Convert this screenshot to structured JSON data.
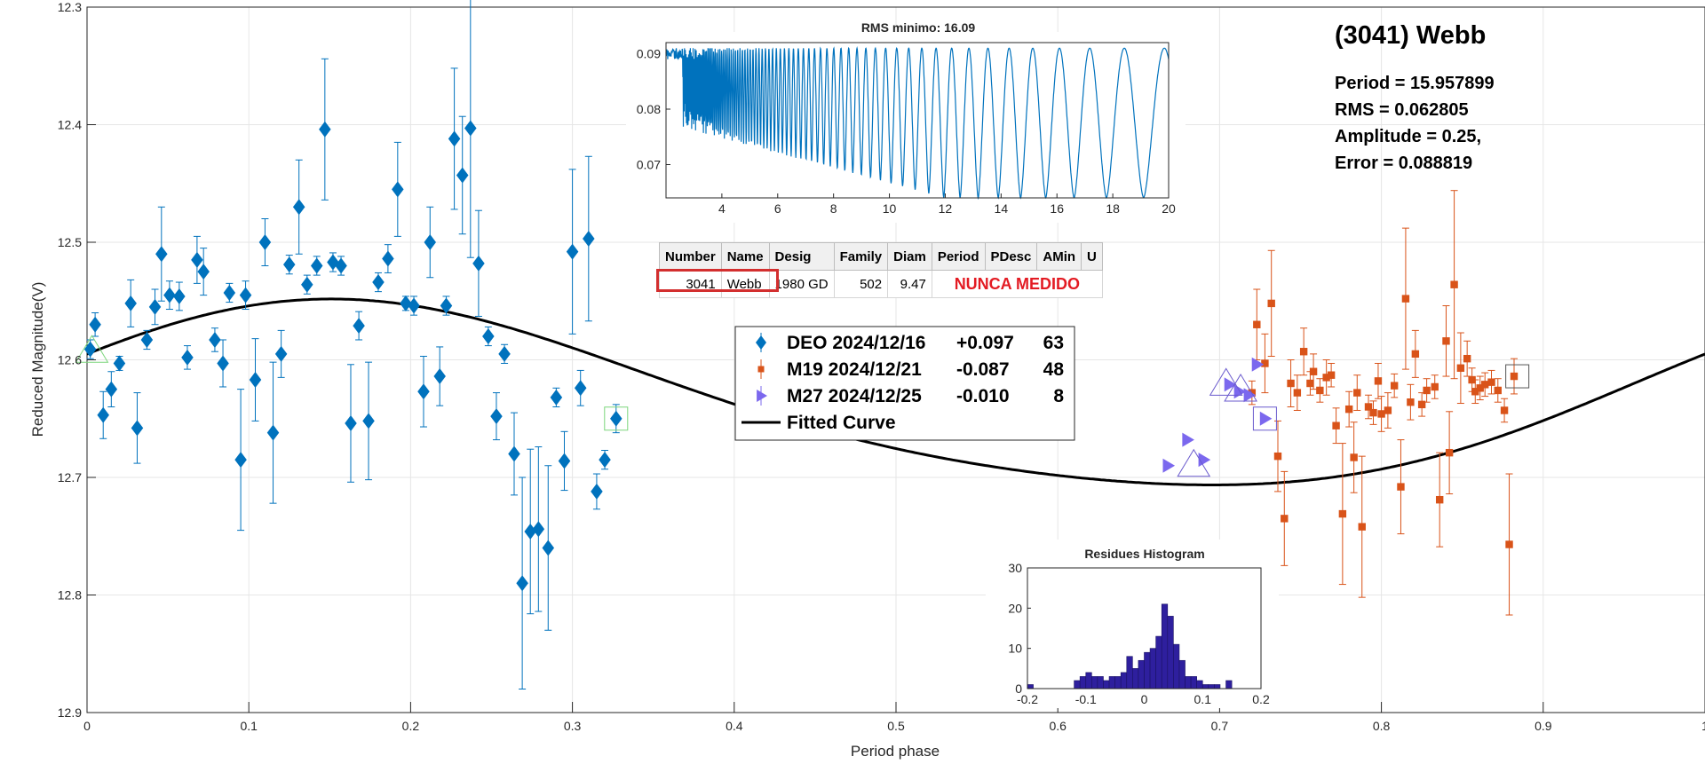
{
  "chart_data": [
    {
      "type": "scatter",
      "title": "",
      "xlabel": "Period phase",
      "ylabel": "Reduced Magnitude(V)",
      "xlim": [
        0,
        1
      ],
      "ylim": [
        12.3,
        12.9
      ],
      "y_reversed": true,
      "grid": true,
      "x_ticks": [
        "0",
        "0.1",
        "0.2",
        "0.3",
        "0.4",
        "0.5",
        "0.6",
        "0.7",
        "0.8",
        "0.9",
        "1"
      ],
      "y_ticks": [
        "12.3",
        "12.4",
        "12.5",
        "12.6",
        "12.7",
        "12.8",
        "12.9"
      ],
      "legend_position": "center",
      "series": [
        {
          "name": "DEO 2024/12/16",
          "offset": "+0.097",
          "count": "63",
          "marker": "diamond",
          "color": "#0072bd",
          "points": [
            [
              0.002,
              12.591,
              0.008
            ],
            [
              0.005,
              12.57,
              0.01
            ],
            [
              0.01,
              12.647,
              0.02
            ],
            [
              0.015,
              12.625,
              0.015
            ],
            [
              0.02,
              12.603,
              0.006
            ],
            [
              0.027,
              12.552,
              0.02
            ],
            [
              0.031,
              12.658,
              0.03
            ],
            [
              0.037,
              12.583,
              0.008
            ],
            [
              0.042,
              12.555,
              0.015
            ],
            [
              0.046,
              12.51,
              0.04
            ],
            [
              0.051,
              12.545,
              0.012
            ],
            [
              0.057,
              12.546,
              0.012
            ],
            [
              0.062,
              12.598,
              0.01
            ],
            [
              0.068,
              12.515,
              0.02
            ],
            [
              0.072,
              12.525,
              0.02
            ],
            [
              0.079,
              12.583,
              0.01
            ],
            [
              0.084,
              12.603,
              0.02
            ],
            [
              0.088,
              12.543,
              0.008
            ],
            [
              0.095,
              12.685,
              0.06
            ],
            [
              0.098,
              12.545,
              0.012
            ],
            [
              0.104,
              12.617,
              0.035
            ],
            [
              0.11,
              12.5,
              0.02
            ],
            [
              0.115,
              12.662,
              0.06
            ],
            [
              0.12,
              12.595,
              0.02
            ],
            [
              0.125,
              12.519,
              0.008
            ],
            [
              0.131,
              12.47,
              0.04
            ],
            [
              0.136,
              12.536,
              0.008
            ],
            [
              0.142,
              12.52,
              0.008
            ],
            [
              0.147,
              12.404,
              0.06
            ],
            [
              0.152,
              12.517,
              0.008
            ],
            [
              0.157,
              12.52,
              0.008
            ],
            [
              0.163,
              12.654,
              0.05
            ],
            [
              0.168,
              12.571,
              0.012
            ],
            [
              0.174,
              12.652,
              0.05
            ],
            [
              0.18,
              12.534,
              0.008
            ],
            [
              0.186,
              12.514,
              0.012
            ],
            [
              0.192,
              12.455,
              0.04
            ],
            [
              0.197,
              12.552,
              0.006
            ],
            [
              0.202,
              12.554,
              0.008
            ],
            [
              0.208,
              12.627,
              0.03
            ],
            [
              0.212,
              12.5,
              0.03
            ],
            [
              0.218,
              12.614,
              0.025
            ],
            [
              0.222,
              12.554,
              0.008
            ],
            [
              0.227,
              12.412,
              0.06
            ],
            [
              0.232,
              12.443,
              0.05
            ],
            [
              0.237,
              12.403,
              0.11
            ],
            [
              0.242,
              12.518,
              0.045
            ],
            [
              0.248,
              12.58,
              0.008
            ],
            [
              0.253,
              12.648,
              0.02
            ],
            [
              0.258,
              12.595,
              0.008
            ],
            [
              0.264,
              12.68,
              0.035
            ],
            [
              0.269,
              12.79,
              0.09
            ],
            [
              0.274,
              12.746,
              0.07
            ],
            [
              0.279,
              12.744,
              0.07
            ],
            [
              0.285,
              12.76,
              0.07
            ],
            [
              0.29,
              12.632,
              0.008
            ],
            [
              0.295,
              12.686,
              0.025
            ],
            [
              0.3,
              12.508,
              0.07
            ],
            [
              0.305,
              12.624,
              0.015
            ],
            [
              0.31,
              12.497,
              0.07
            ],
            [
              0.315,
              12.712,
              0.015
            ],
            [
              0.32,
              12.685,
              0.008
            ],
            [
              0.327,
              12.65,
              0.012
            ]
          ]
        },
        {
          "name": "M19 2024/12/21",
          "offset": "-0.087",
          "count": "48",
          "marker": "square",
          "color": "#d95319",
          "points": [
            [
              0.72,
              12.628,
              0.01
            ],
            [
              0.723,
              12.57,
              0.03
            ],
            [
              0.728,
              12.603,
              0.025
            ],
            [
              0.732,
              12.552,
              0.045
            ],
            [
              0.736,
              12.682,
              0.03
            ],
            [
              0.74,
              12.735,
              0.04
            ],
            [
              0.744,
              12.62,
              0.02
            ],
            [
              0.748,
              12.628,
              0.015
            ],
            [
              0.752,
              12.593,
              0.02
            ],
            [
              0.756,
              12.62,
              0.01
            ],
            [
              0.758,
              12.61,
              0.015
            ],
            [
              0.762,
              12.626,
              0.01
            ],
            [
              0.766,
              12.615,
              0.015
            ],
            [
              0.769,
              12.613,
              0.01
            ],
            [
              0.772,
              12.656,
              0.015
            ],
            [
              0.776,
              12.731,
              0.06
            ],
            [
              0.78,
              12.642,
              0.015
            ],
            [
              0.783,
              12.683,
              0.03
            ],
            [
              0.785,
              12.628,
              0.015
            ],
            [
              0.788,
              12.742,
              0.06
            ],
            [
              0.792,
              12.64,
              0.01
            ],
            [
              0.795,
              12.645,
              0.01
            ],
            [
              0.798,
              12.618,
              0.015
            ],
            [
              0.8,
              12.646,
              0.015
            ],
            [
              0.804,
              12.643,
              0.015
            ],
            [
              0.808,
              12.622,
              0.01
            ],
            [
              0.812,
              12.708,
              0.04
            ],
            [
              0.815,
              12.548,
              0.06
            ],
            [
              0.818,
              12.636,
              0.015
            ],
            [
              0.821,
              12.595,
              0.02
            ],
            [
              0.825,
              12.638,
              0.01
            ],
            [
              0.828,
              12.626,
              0.01
            ],
            [
              0.833,
              12.623,
              0.01
            ],
            [
              0.836,
              12.719,
              0.04
            ],
            [
              0.84,
              12.584,
              0.03
            ],
            [
              0.842,
              12.679,
              0.035
            ],
            [
              0.845,
              12.536,
              0.08
            ],
            [
              0.849,
              12.607,
              0.03
            ],
            [
              0.853,
              12.599,
              0.015
            ],
            [
              0.856,
              12.617,
              0.01
            ],
            [
              0.858,
              12.627,
              0.01
            ],
            [
              0.861,
              12.624,
              0.01
            ],
            [
              0.864,
              12.621,
              0.01
            ],
            [
              0.868,
              12.619,
              0.01
            ],
            [
              0.872,
              12.626,
              0.01
            ],
            [
              0.876,
              12.643,
              0.01
            ],
            [
              0.879,
              12.757,
              0.06
            ],
            [
              0.882,
              12.614,
              0.015
            ]
          ]
        },
        {
          "name": "M27 2024/12/25",
          "offset": "-0.010",
          "count": "8",
          "marker": "triangle-right",
          "color": "#7b68ee",
          "points": [
            [
              0.668,
              12.69,
              0
            ],
            [
              0.68,
              12.668,
              0
            ],
            [
              0.69,
              12.685,
              0
            ],
            [
              0.706,
              12.621,
              0
            ],
            [
              0.712,
              12.627,
              0
            ],
            [
              0.718,
              12.63,
              0
            ],
            [
              0.723,
              12.604,
              0
            ],
            [
              0.728,
              12.65,
              0
            ]
          ]
        }
      ],
      "fitted_curve": {
        "name": "Fitted Curve",
        "color": "#000000",
        "mean": 12.6355,
        "harmonics": [
          [
            -0.0402,
            -0.0673
          ],
          [
            -0.0002,
            -0.0097
          ]
        ]
      },
      "highlight_boxes": [
        {
          "x": 0.003,
          "y": 12.593,
          "shape": "triangle",
          "color": "#7cd67c"
        },
        {
          "x": 0.327,
          "y": 12.65,
          "shape": "square",
          "color": "#7cd67c"
        },
        {
          "x": 0.704,
          "y": 12.621,
          "shape": "triangle",
          "color": "#6a5acd"
        },
        {
          "x": 0.713,
          "y": 12.626,
          "shape": "triangle",
          "color": "#6a5acd"
        },
        {
          "x": 0.684,
          "y": 12.69,
          "shape": "triangle",
          "color": "#6a5acd"
        },
        {
          "x": 0.728,
          "y": 12.65,
          "shape": "square",
          "color": "#6a5acd"
        },
        {
          "x": 0.884,
          "y": 12.614,
          "shape": "square",
          "color": "#555555"
        }
      ]
    },
    {
      "type": "line",
      "title": "RMS minimo: 16.09",
      "xlim": [
        2,
        20
      ],
      "ylim": [
        0.064,
        0.092
      ],
      "x_ticks": [
        "4",
        "6",
        "8",
        "10",
        "12",
        "14",
        "16",
        "18",
        "20"
      ],
      "y_ticks": [
        "0.07",
        "0.08",
        "0.09"
      ],
      "color": "#0072bd",
      "series_description_values": {
        "rms_min": 0.064,
        "rms_max": 0.091,
        "best_period": 16.09,
        "period_start": 2,
        "period_end": 20
      }
    },
    {
      "type": "bar",
      "title": "Residues Histogram",
      "xlim": [
        -0.2,
        0.2
      ],
      "ylim": [
        0,
        30
      ],
      "x_ticks": [
        "-0.2",
        "-0.1",
        "0",
        "0.1",
        "0.2"
      ],
      "y_ticks": [
        "0",
        "10",
        "20",
        "30"
      ],
      "color": "#2e1f9e",
      "bin_width": 0.01,
      "bins_start": -0.195,
      "values": [
        1,
        0,
        0,
        0,
        0,
        0,
        0,
        0,
        2,
        3,
        4,
        3,
        3,
        2,
        3,
        3,
        4,
        8,
        5,
        7,
        9,
        10,
        13,
        21,
        18,
        11,
        7,
        3,
        3,
        2,
        1,
        1,
        1,
        0,
        2,
        0,
        0,
        0,
        0,
        0
      ]
    }
  ],
  "info": {
    "title": "(3041) Webb",
    "period": "Period =  15.957899",
    "rms": "RMS = 0.062805",
    "amplitude": "Amplitude = 0.25,",
    "error": "Error = 0.088819"
  },
  "table": {
    "headers": [
      "Number",
      "Name",
      "Desig",
      "Family",
      "Diam",
      "Period",
      "PDesc",
      "AMin",
      "U"
    ],
    "row": {
      "number": "3041",
      "name": "Webb",
      "desig": "1980 GD",
      "family": "502",
      "diam": "9.47",
      "status": "NUNCA MEDIDO"
    }
  },
  "legend": {
    "fitted_label": "Fitted Curve"
  }
}
